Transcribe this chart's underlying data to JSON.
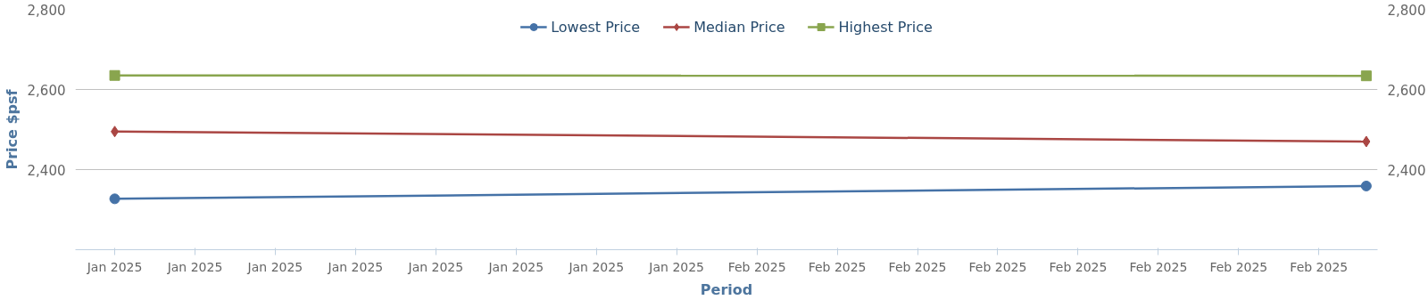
{
  "chart_data": {
    "type": "line",
    "xlabel": "Period",
    "ylabel": "Price $psf",
    "x": [
      "2025-01-03T00:00",
      "2025-02-28T21:42"
    ],
    "xlim": [
      "2025-01-01T05:06",
      "2025-03-01T10:00"
    ],
    "xticks": [
      {
        "value": "2025-01-03T00:00",
        "label": "Jan 2025"
      },
      {
        "value": "2025-01-06T15:36",
        "label": "Jan 2025"
      },
      {
        "value": "2025-01-10T07:12",
        "label": "Jan 2025"
      },
      {
        "value": "2025-01-13T22:48",
        "label": "Jan 2025"
      },
      {
        "value": "2025-01-17T14:24",
        "label": "Jan 2025"
      },
      {
        "value": "2025-01-21T06:00",
        "label": "Jan 2025"
      },
      {
        "value": "2025-01-24T21:36",
        "label": "Jan 2025"
      },
      {
        "value": "2025-01-28T13:12",
        "label": "Jan 2025"
      },
      {
        "value": "2025-02-01T04:48",
        "label": "Feb 2025"
      },
      {
        "value": "2025-02-04T20:24",
        "label": "Feb 2025"
      },
      {
        "value": "2025-02-08T12:00",
        "label": "Feb 2025"
      },
      {
        "value": "2025-02-12T03:36",
        "label": "Feb 2025"
      },
      {
        "value": "2025-02-15T19:12",
        "label": "Feb 2025"
      },
      {
        "value": "2025-02-19T10:48",
        "label": "Feb 2025"
      },
      {
        "value": "2025-02-23T02:24",
        "label": "Feb 2025"
      },
      {
        "value": "2025-02-26T18:00",
        "label": "Feb 2025"
      }
    ],
    "ylim": [
      2200,
      2800
    ],
    "yticks": [
      {
        "value": 2200,
        "label": null
      },
      {
        "value": 2400,
        "label": "2,400"
      },
      {
        "value": 2600,
        "label": "2,600"
      },
      {
        "value": 2800,
        "label": "2,800"
      }
    ],
    "y2lim": [
      2200,
      2800
    ],
    "y2ticks": [
      {
        "value": 2200,
        "label": null
      },
      {
        "value": 2400,
        "label": "2,400"
      },
      {
        "value": 2600,
        "label": "2,600"
      },
      {
        "value": 2800,
        "label": "2,800"
      }
    ],
    "grid": "y",
    "legend": "top",
    "line_style": "solid",
    "series": [
      {
        "name": "Lowest Price",
        "color": "#4572a7",
        "marker": "circle",
        "values": [
          2327,
          2359
        ]
      },
      {
        "name": "Median Price",
        "color": "#aa4643",
        "marker": "diamond",
        "values": [
          2495,
          2470
        ]
      },
      {
        "name": "Highest Price",
        "color": "#89a54e",
        "marker": "square",
        "values": [
          2635,
          2634
        ]
      }
    ]
  }
}
